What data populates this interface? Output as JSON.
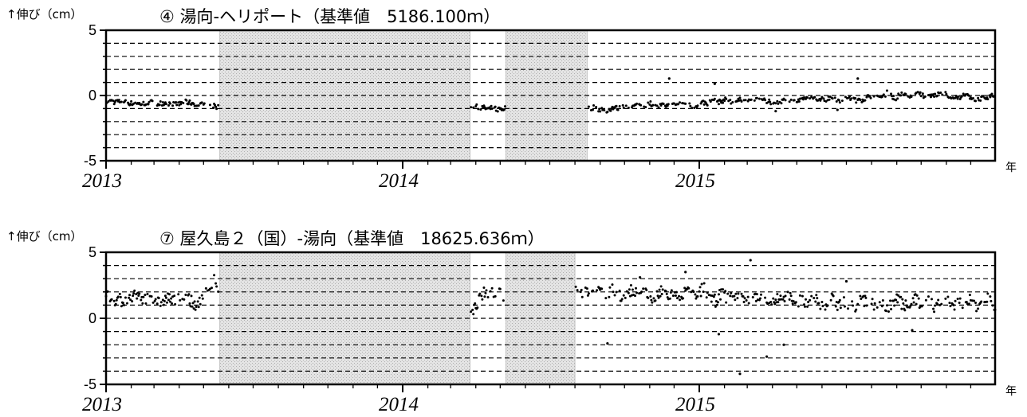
{
  "chart_data": [
    {
      "type": "scatter",
      "title": "④ 湯向-ヘリポート（基準値　5186.100ｍ）",
      "ylabel": "↑伸び（cm）",
      "x_unit_label": "年",
      "xlim": [
        "2013-01-01",
        "2015-12-31"
      ],
      "ylim": [
        -5,
        5
      ],
      "y_ticks": [
        "5",
        "0",
        "-5"
      ],
      "x_ticks": [
        "2013",
        "2014",
        "2015"
      ],
      "grid": "dashed-horizontal-every-1cm",
      "gaps": [
        [
          "2013-05-21",
          "2014-03-25"
        ],
        [
          "2014-05-08",
          "2014-08-16"
        ]
      ],
      "series": [
        {
          "segments": [
            {
              "start": "2013-01-01",
              "end": "2013-05-20",
              "points": [
                -0.5,
                -0.45,
                -0.5,
                -0.5,
                -0.4,
                -0.55,
                -0.6,
                -0.6,
                -0.65,
                -0.6,
                -0.55,
                -0.5,
                -0.7,
                -0.6,
                -0.55,
                -0.6,
                -0.65,
                -0.7,
                -0.6,
                -0.5,
                -0.55,
                -0.6,
                -0.75,
                -0.7,
                -0.8,
                -0.9,
                -0.8,
                -0.95
              ]
            },
            {
              "start": "2014-03-26",
              "end": "2014-05-07",
              "points": [
                -0.9,
                -0.8,
                -0.85,
                -1.0,
                -0.9,
                -0.95,
                -1.0,
                -1.05,
                -0.95,
                -1.0,
                -1.1,
                -1.0,
                -1.05,
                -0.95
              ]
            },
            {
              "start": "2014-08-17",
              "end": "2015-12-31",
              "points": [
                -1.0,
                -0.9,
                -1.1,
                -1.2,
                -0.9,
                -1.0,
                -0.8,
                -0.9,
                -0.7,
                -0.8,
                -0.6,
                -0.9,
                -0.7,
                -0.8,
                -0.7,
                -0.6,
                -0.7,
                -0.9,
                -0.5,
                -0.6,
                -0.4,
                -0.5,
                -0.3,
                -0.5,
                -0.4,
                -0.2,
                -0.5,
                -0.3,
                -0.4,
                -0.5,
                -0.6,
                -0.4,
                -0.3,
                -0.5,
                -0.4,
                -0.2,
                -0.3,
                -0.2,
                -0.3,
                -0.1,
                -0.4,
                -0.3,
                -0.2,
                -0.4,
                -0.3,
                0.0,
                -0.2,
                -0.1,
                0.3,
                -0.3,
                0.2,
                -0.1,
                0.0,
                0.2,
                -0.2,
                0.0,
                0.1,
                0.1,
                -0.1,
                -0.2,
                0.0,
                -0.1,
                -0.3,
                -0.2,
                -0.1,
                0.0
              ]
            }
          ],
          "outliers": [
            [
              "2014-11-25",
              1.3
            ],
            [
              "2015-01-20",
              0.9
            ],
            [
              "2015-07-15",
              1.3
            ],
            [
              "2015-04-05",
              -1.2
            ],
            [
              "2015-06-20",
              -1.1
            ]
          ]
        }
      ]
    },
    {
      "type": "scatter",
      "title": "⑦ 屋久島２（国）-湯向（基準値　18625.636ｍ）",
      "ylabel": "↑伸び（cm）",
      "x_unit_label": "年",
      "xlim": [
        "2013-01-01",
        "2015-12-31"
      ],
      "ylim": [
        -5,
        5
      ],
      "y_ticks": [
        "5",
        "0",
        "-5"
      ],
      "x_ticks": [
        "2013",
        "2014",
        "2015"
      ],
      "grid": "dashed-horizontal-every-1cm",
      "gaps": [
        [
          "2013-05-21",
          "2014-03-25"
        ],
        [
          "2014-05-08",
          "2014-08-01"
        ]
      ],
      "series": [
        {
          "segments": [
            {
              "start": "2013-01-01",
              "end": "2013-05-20",
              "points": [
                1.8,
                1.5,
                1.3,
                1.6,
                1.2,
                1.4,
                1.5,
                1.7,
                1.6,
                1.3,
                1.8,
                1.5,
                1.1,
                1.3,
                1.4,
                1.6,
                1.2,
                1.5,
                1.3,
                1.6,
                1.4,
                1.0,
                1.2,
                1.8,
                2.0,
                2.5,
                2.9,
                1.5
              ]
            },
            {
              "start": "2014-03-26",
              "end": "2014-05-07",
              "points": [
                0.1,
                0.5,
                1.0,
                1.4,
                1.6,
                1.9,
                2.0,
                1.7,
                2.1,
                1.8,
                1.5,
                2.2,
                1.6,
                1.9
              ]
            },
            {
              "start": "2014-08-02",
              "end": "2015-12-31",
              "points": [
                2.3,
                1.9,
                2.1,
                1.8,
                2.0,
                1.7,
                2.2,
                1.9,
                1.5,
                2.1,
                1.8,
                2.3,
                1.6,
                1.4,
                2.0,
                1.7,
                1.9,
                1.5,
                2.1,
                1.8,
                1.6,
                2.4,
                1.7,
                1.3,
                1.9,
                1.5,
                1.8,
                1.6,
                1.2,
                1.9,
                1.4,
                1.7,
                1.0,
                1.5,
                1.3,
                1.8,
                0.9,
                1.4,
                1.1,
                1.6,
                1.2,
                0.8,
                1.5,
                1.0,
                1.3,
                1.1,
                0.9,
                1.4,
                1.2,
                1.0,
                1.3,
                0.8,
                1.1,
                1.5,
                0.9,
                1.2,
                1.4,
                1.0,
                1.3,
                0.8,
                1.2,
                1.5,
                1.0,
                1.3,
                1.1,
                1.4,
                0.9,
                1.2,
                1.6,
                1.0
              ]
            }
          ],
          "outliers": [
            [
              "2014-10-20",
              3.1
            ],
            [
              "2014-12-15",
              3.5
            ],
            [
              "2015-03-05",
              4.4
            ],
            [
              "2015-02-20",
              -4.2
            ],
            [
              "2015-03-25",
              -2.9
            ],
            [
              "2015-04-15",
              -2.0
            ],
            [
              "2015-01-25",
              -1.2
            ],
            [
              "2015-09-20",
              -0.9
            ],
            [
              "2015-07-01",
              2.8
            ],
            [
              "2014-09-10",
              -1.9
            ]
          ]
        }
      ]
    }
  ]
}
